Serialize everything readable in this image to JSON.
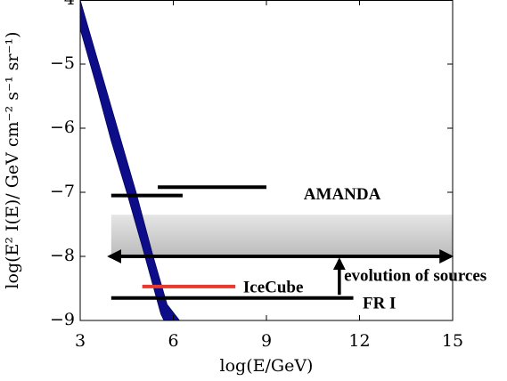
{
  "chart_data": {
    "type": "line",
    "title": "",
    "xlabel": "log(E/GeV)",
    "ylabel": "log(E² I(E)/ GeV cm⁻² s⁻¹ sr⁻¹)",
    "xlim": [
      3,
      15
    ],
    "ylim": [
      -9,
      -4
    ],
    "xticks": [
      "3",
      "6",
      "9",
      "12",
      "15"
    ],
    "yticks": [
      "−4",
      "−5",
      "−6",
      "−7",
      "−8",
      "−9"
    ],
    "grid": false,
    "band": {
      "color": "#0d0d8a",
      "upper": [
        [
          3.0,
          -4.0
        ],
        [
          3.6,
          -5.0
        ],
        [
          4.2,
          -6.0
        ],
        [
          4.8,
          -7.0
        ],
        [
          5.35,
          -8.0
        ],
        [
          5.8,
          -8.75
        ],
        [
          6.2,
          -9.0
        ]
      ],
      "lower": [
        [
          3.0,
          -4.45
        ],
        [
          3.5,
          -5.3
        ],
        [
          4.0,
          -6.2
        ],
        [
          4.5,
          -7.0
        ],
        [
          5.0,
          -7.85
        ],
        [
          5.6,
          -8.9
        ],
        [
          5.7,
          -9.0
        ]
      ]
    },
    "segments": [
      {
        "label": "AMANDA",
        "color": "#000000",
        "x": [
          5.5,
          9.0
        ],
        "y": -6.92
      },
      {
        "label": "",
        "color": "#000000",
        "x": [
          4.0,
          6.3
        ],
        "y": -7.05
      },
      {
        "label": "IceCube",
        "color": "#e8392f",
        "x": [
          5.0,
          8.0
        ],
        "y": -8.47
      },
      {
        "label": "FR I",
        "color": "#000000",
        "x": [
          4.0,
          11.8
        ],
        "y": -8.65
      }
    ],
    "shaded_region": {
      "x": [
        4.0,
        15.0
      ],
      "y": [
        -8.0,
        -7.35
      ],
      "color": "#c8c8c8"
    },
    "double_arrow": {
      "x": [
        3.9,
        15.0
      ],
      "y": -8.0
    },
    "up_arrow": {
      "x": 11.35,
      "y": [
        -8.6,
        -8.0
      ]
    },
    "annotations": [
      {
        "text": "AMANDA",
        "x": 10.2,
        "y": -7.05
      },
      {
        "text": "IceCube",
        "x": 8.25,
        "y": -8.5
      },
      {
        "text": "evolution of sources",
        "x": 11.5,
        "y": -8.32
      },
      {
        "text": "FR I",
        "x": 12.1,
        "y": -8.75
      }
    ]
  }
}
